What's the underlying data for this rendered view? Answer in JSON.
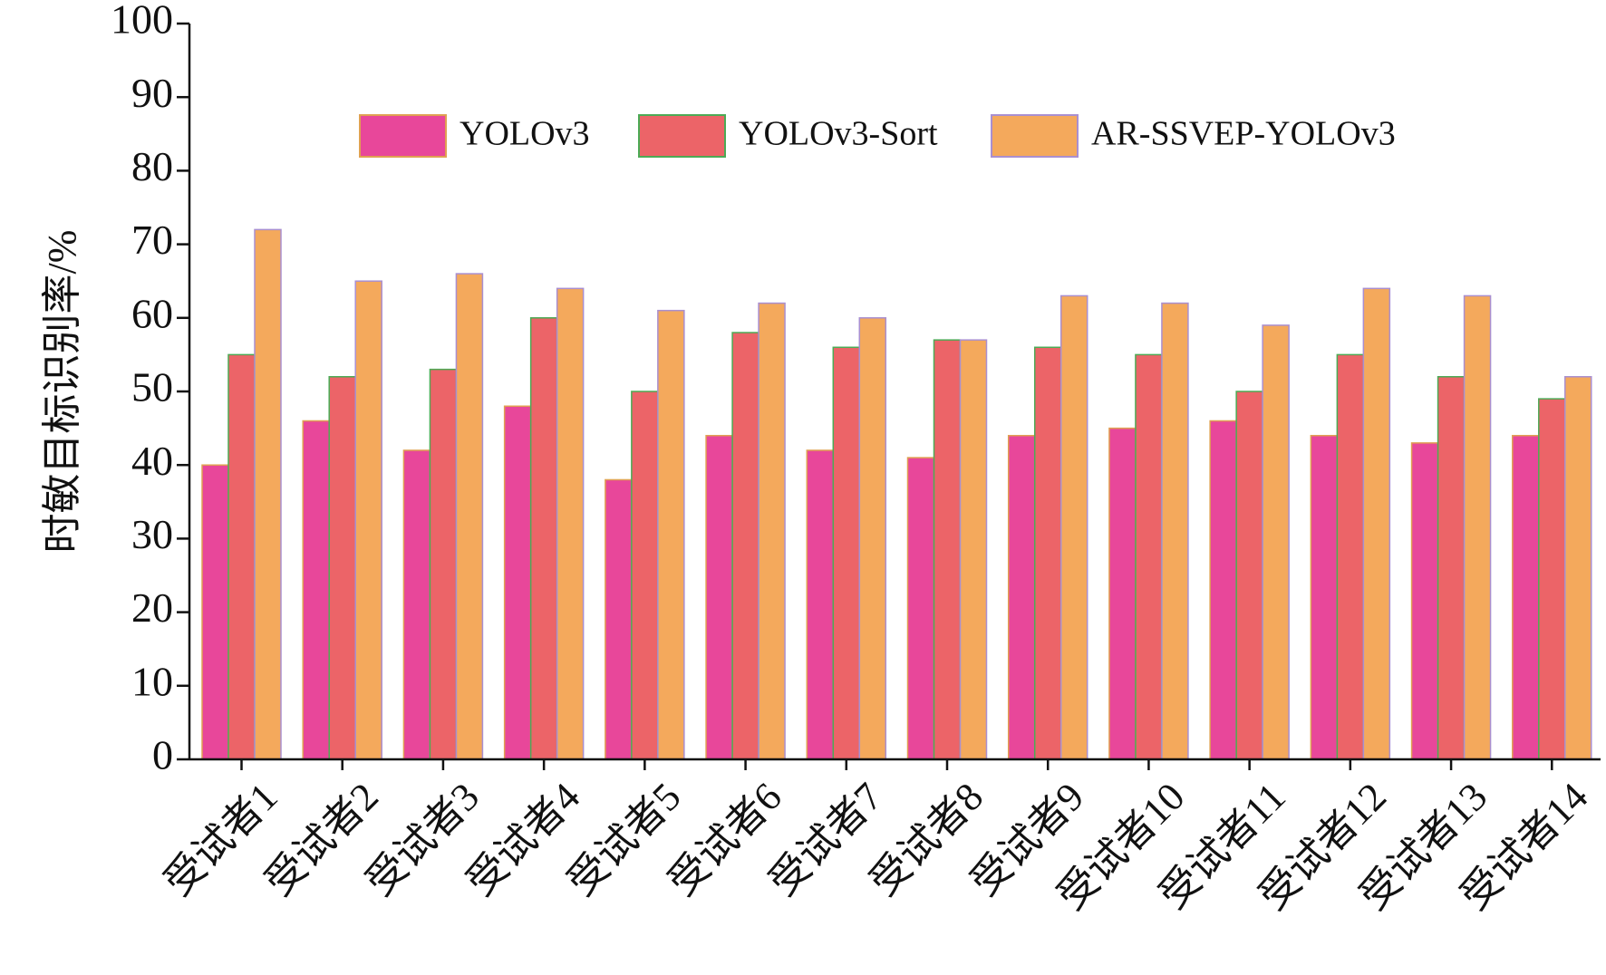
{
  "chart_data": {
    "type": "bar",
    "title": "",
    "xlabel": "",
    "ylabel": "时敏目标识别率/%",
    "ylim": [
      0,
      100
    ],
    "yticks": [
      0,
      10,
      20,
      30,
      40,
      50,
      60,
      70,
      80,
      90,
      100
    ],
    "grid": false,
    "legend_position": "top",
    "categories": [
      "受试者1",
      "受试者2",
      "受试者3",
      "受试者4",
      "受试者5",
      "受试者6",
      "受试者7",
      "受试者8",
      "受试者9",
      "受试者10",
      "受试者11",
      "受试者12",
      "受试者13",
      "受试者14"
    ],
    "series": [
      {
        "name": "YOLOv3",
        "color": "#e8479a",
        "values": [
          40,
          46,
          42,
          48,
          38,
          44,
          42,
          41,
          44,
          45,
          46,
          44,
          43,
          44
        ]
      },
      {
        "name": "YOLOv3-Sort",
        "color": "#ec6468",
        "values": [
          55,
          52,
          53,
          60,
          50,
          58,
          56,
          57,
          56,
          55,
          50,
          55,
          52,
          49
        ]
      },
      {
        "name": "AR-SSVEP-YOLOv3",
        "color": "#f4a95c",
        "values": [
          72,
          65,
          66,
          64,
          61,
          62,
          60,
          57,
          63,
          62,
          59,
          64,
          63,
          52
        ]
      }
    ]
  }
}
